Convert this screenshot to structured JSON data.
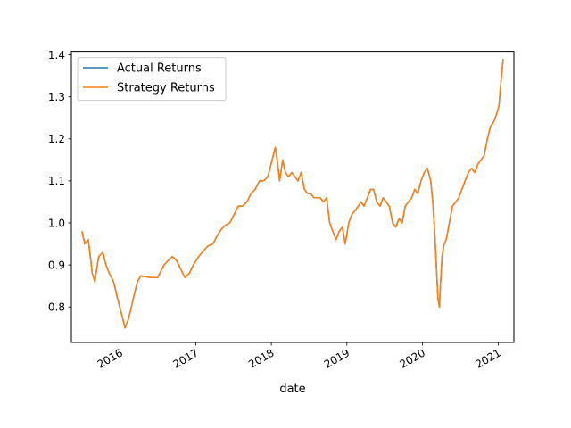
{
  "chart_data": {
    "type": "line",
    "title": "",
    "xlabel": "date",
    "ylabel": "",
    "xlim": [
      "2015-05-11",
      "2021-03-18"
    ],
    "ylim": [
      0.7155,
      1.4085
    ],
    "x_ticks": [
      "2016-01-01",
      "2017-01-01",
      "2018-01-01",
      "2019-01-01",
      "2020-01-01",
      "2021-01-01"
    ],
    "x_tick_labels": [
      "2016",
      "2017",
      "2018",
      "2019",
      "2020",
      "2021"
    ],
    "y_ticks": [
      0.8,
      0.9,
      1.0,
      1.1,
      1.2,
      1.3,
      1.4
    ],
    "y_tick_labels": [
      "0.8",
      "0.9",
      "1.0",
      "1.1",
      "1.2",
      "1.3",
      "1.4"
    ],
    "grid": false,
    "legend_position": "top-left",
    "x": [
      "2015-07-01",
      "2015-07-15",
      "2015-08-01",
      "2015-08-20",
      "2015-09-01",
      "2015-09-20",
      "2015-10-10",
      "2015-10-25",
      "2015-11-10",
      "2015-12-01",
      "2015-12-20",
      "2016-01-10",
      "2016-01-25",
      "2016-02-10",
      "2016-02-25",
      "2016-03-10",
      "2016-03-25",
      "2016-04-10",
      "2016-05-01",
      "2016-06-01",
      "2016-07-01",
      "2016-08-01",
      "2016-08-20",
      "2016-09-10",
      "2016-10-01",
      "2016-10-20",
      "2016-11-10",
      "2016-12-01",
      "2016-12-20",
      "2017-01-15",
      "2017-02-10",
      "2017-03-01",
      "2017-03-25",
      "2017-04-15",
      "2017-05-05",
      "2017-05-25",
      "2017-06-15",
      "2017-07-05",
      "2017-07-25",
      "2017-08-15",
      "2017-09-05",
      "2017-09-25",
      "2017-10-15",
      "2017-11-05",
      "2017-11-25",
      "2017-12-15",
      "2018-01-05",
      "2018-01-20",
      "2018-02-01",
      "2018-02-10",
      "2018-02-25",
      "2018-03-10",
      "2018-03-25",
      "2018-04-10",
      "2018-04-25",
      "2018-05-10",
      "2018-05-25",
      "2018-06-10",
      "2018-06-25",
      "2018-07-10",
      "2018-07-25",
      "2018-08-10",
      "2018-08-25",
      "2018-09-10",
      "2018-09-25",
      "2018-10-10",
      "2018-10-25",
      "2018-11-10",
      "2018-11-25",
      "2018-12-10",
      "2018-12-24",
      "2019-01-10",
      "2019-01-25",
      "2019-02-10",
      "2019-02-25",
      "2019-03-10",
      "2019-03-25",
      "2019-04-10",
      "2019-04-25",
      "2019-05-10",
      "2019-05-25",
      "2019-06-10",
      "2019-06-25",
      "2019-07-10",
      "2019-07-25",
      "2019-08-10",
      "2019-08-25",
      "2019-09-10",
      "2019-09-25",
      "2019-10-10",
      "2019-10-25",
      "2019-11-10",
      "2019-11-25",
      "2019-12-10",
      "2019-12-25",
      "2020-01-10",
      "2020-01-25",
      "2020-02-10",
      "2020-02-20",
      "2020-03-01",
      "2020-03-10",
      "2020-03-16",
      "2020-03-23",
      "2020-03-30",
      "2020-04-05",
      "2020-04-15",
      "2020-04-25",
      "2020-05-10",
      "2020-05-25",
      "2020-06-10",
      "2020-06-25",
      "2020-07-10",
      "2020-07-25",
      "2020-08-10",
      "2020-08-25",
      "2020-09-10",
      "2020-09-25",
      "2020-10-10",
      "2020-10-25",
      "2020-11-10",
      "2020-11-25",
      "2020-12-10",
      "2020-12-25",
      "2021-01-05",
      "2021-01-15",
      "2021-01-25"
    ],
    "series": [
      {
        "name": "Actual Returns",
        "color": "#1f77b4",
        "values": [
          0.98,
          0.95,
          0.96,
          0.88,
          0.86,
          0.92,
          0.93,
          0.9,
          0.88,
          0.86,
          0.82,
          0.78,
          0.75,
          0.77,
          0.8,
          0.83,
          0.86,
          0.874,
          0.872,
          0.87,
          0.87,
          0.9,
          0.91,
          0.92,
          0.91,
          0.89,
          0.87,
          0.88,
          0.9,
          0.92,
          0.935,
          0.945,
          0.95,
          0.97,
          0.985,
          0.995,
          1.0,
          1.02,
          1.04,
          1.04,
          1.05,
          1.07,
          1.08,
          1.1,
          1.1,
          1.11,
          1.15,
          1.18,
          1.14,
          1.1,
          1.15,
          1.12,
          1.11,
          1.12,
          1.11,
          1.1,
          1.12,
          1.08,
          1.07,
          1.07,
          1.06,
          1.06,
          1.06,
          1.05,
          1.06,
          1.0,
          0.98,
          0.96,
          0.98,
          0.99,
          0.95,
          1.0,
          1.02,
          1.03,
          1.04,
          1.05,
          1.04,
          1.06,
          1.08,
          1.08,
          1.05,
          1.04,
          1.06,
          1.05,
          1.04,
          1.0,
          0.99,
          1.01,
          1.0,
          1.04,
          1.05,
          1.06,
          1.08,
          1.07,
          1.1,
          1.12,
          1.13,
          1.1,
          1.05,
          0.97,
          0.88,
          0.82,
          0.8,
          0.87,
          0.92,
          0.95,
          0.96,
          1.0,
          1.04,
          1.05,
          1.06,
          1.08,
          1.1,
          1.12,
          1.13,
          1.12,
          1.14,
          1.15,
          1.16,
          1.2,
          1.23,
          1.24,
          1.26,
          1.28,
          1.34,
          1.39
        ]
      },
      {
        "name": "Strategy Returns",
        "color": "#ff7f0e",
        "values": [
          0.98,
          0.95,
          0.96,
          0.88,
          0.86,
          0.92,
          0.93,
          0.9,
          0.88,
          0.86,
          0.82,
          0.78,
          0.75,
          0.77,
          0.8,
          0.83,
          0.86,
          0.874,
          0.872,
          0.87,
          0.87,
          0.9,
          0.91,
          0.92,
          0.91,
          0.89,
          0.87,
          0.88,
          0.9,
          0.92,
          0.935,
          0.945,
          0.95,
          0.97,
          0.985,
          0.995,
          1.0,
          1.02,
          1.04,
          1.04,
          1.05,
          1.07,
          1.08,
          1.1,
          1.1,
          1.11,
          1.15,
          1.18,
          1.14,
          1.1,
          1.15,
          1.12,
          1.11,
          1.12,
          1.11,
          1.1,
          1.12,
          1.08,
          1.07,
          1.07,
          1.06,
          1.06,
          1.06,
          1.05,
          1.06,
          1.0,
          0.98,
          0.96,
          0.98,
          0.99,
          0.95,
          1.0,
          1.02,
          1.03,
          1.04,
          1.05,
          1.04,
          1.06,
          1.08,
          1.08,
          1.05,
          1.04,
          1.06,
          1.05,
          1.04,
          1.0,
          0.99,
          1.01,
          1.0,
          1.04,
          1.05,
          1.06,
          1.08,
          1.07,
          1.1,
          1.12,
          1.13,
          1.1,
          1.05,
          0.97,
          0.88,
          0.82,
          0.8,
          0.87,
          0.92,
          0.95,
          0.96,
          1.0,
          1.04,
          1.05,
          1.06,
          1.08,
          1.1,
          1.12,
          1.13,
          1.12,
          1.14,
          1.15,
          1.16,
          1.2,
          1.23,
          1.24,
          1.26,
          1.28,
          1.34,
          1.39
        ]
      }
    ]
  }
}
